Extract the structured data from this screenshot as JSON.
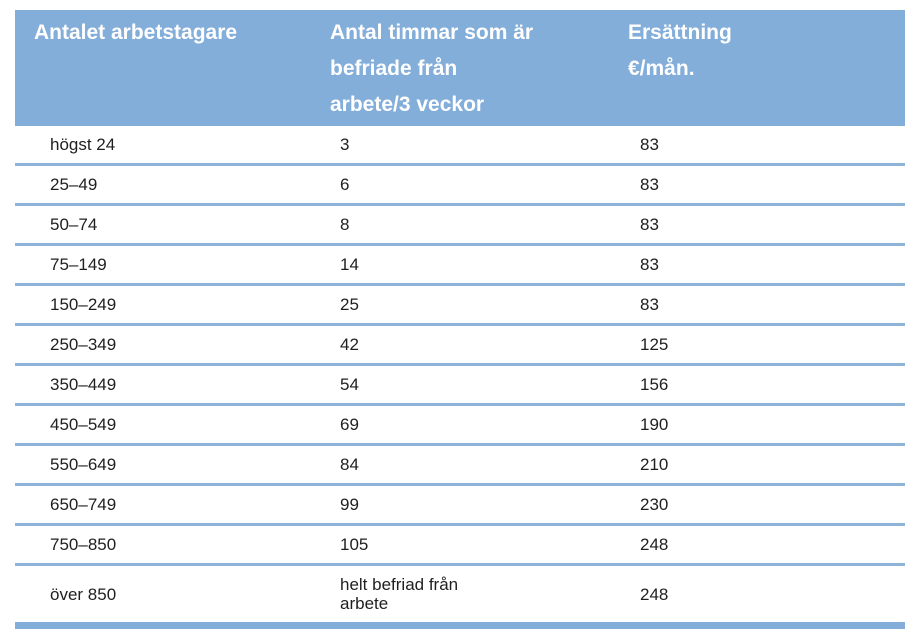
{
  "table": {
    "columns": [
      {
        "label": "Antalet arbetstagare"
      },
      {
        "label": "Antal timmar som är\nbefriade från\narbete/3 veckor"
      },
      {
        "label": "Ersättning\n€/mån."
      }
    ],
    "rows": [
      {
        "workers": "högst 24",
        "hours": "3",
        "compensation": "83"
      },
      {
        "workers": "25–49",
        "hours": "6",
        "compensation": "83"
      },
      {
        "workers": "50–74",
        "hours": "8",
        "compensation": "83"
      },
      {
        "workers": "75–149",
        "hours": "14",
        "compensation": "83"
      },
      {
        "workers": "150–249",
        "hours": "25",
        "compensation": "83"
      },
      {
        "workers": "250–349",
        "hours": "42",
        "compensation": "125"
      },
      {
        "workers": "350–449",
        "hours": "54",
        "compensation": "156"
      },
      {
        "workers": "450–549",
        "hours": "69",
        "compensation": "190"
      },
      {
        "workers": "550–649",
        "hours": "84",
        "compensation": "210"
      },
      {
        "workers": "650–749",
        "hours": "99",
        "compensation": "230"
      },
      {
        "workers": "750–850",
        "hours": "105",
        "compensation": "248"
      },
      {
        "workers": "över 850",
        "hours": "helt befriad från\narbete",
        "compensation": "248"
      }
    ],
    "colors": {
      "header_bg": "#84AEDA",
      "header_text": "#FFFFFF",
      "row_divider": "#8FB3D8",
      "bottom_border": "#84AEDA",
      "body_text": "#1F1F1F"
    }
  },
  "chart_data": {
    "type": "table",
    "title": "",
    "columns": [
      "Antalet arbetstagare",
      "Antal timmar som är befriade från arbete/3 veckor",
      "Ersättning €/mån."
    ],
    "rows": [
      [
        "högst 24",
        "3",
        "83"
      ],
      [
        "25–49",
        "6",
        "83"
      ],
      [
        "50–74",
        "8",
        "83"
      ],
      [
        "75–149",
        "14",
        "83"
      ],
      [
        "150–249",
        "25",
        "83"
      ],
      [
        "250–349",
        "42",
        "125"
      ],
      [
        "350–449",
        "54",
        "156"
      ],
      [
        "450–549",
        "69",
        "190"
      ],
      [
        "550–649",
        "84",
        "210"
      ],
      [
        "650–749",
        "99",
        "230"
      ],
      [
        "750–850",
        "105",
        "248"
      ],
      [
        "över 850",
        "helt befriad från arbete",
        "248"
      ]
    ]
  }
}
